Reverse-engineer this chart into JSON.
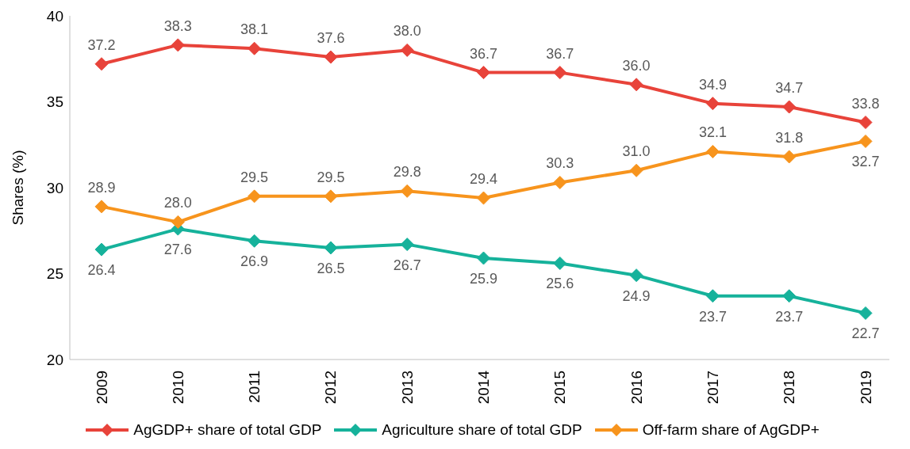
{
  "chart_data": {
    "type": "line",
    "ylabel": "Shares (%)",
    "categories": [
      "2009",
      "2010",
      "2011",
      "2012",
      "2013",
      "2014",
      "2015",
      "2016",
      "2017",
      "2018",
      "2019"
    ],
    "series": [
      {
        "name": "AgGDP+ share of total GDP",
        "color": "#e8433a",
        "values": [
          37.2,
          38.3,
          38.1,
          37.6,
          38.0,
          36.7,
          36.7,
          36.0,
          34.9,
          34.7,
          33.8
        ],
        "value_labels": [
          "37.2",
          "38.3",
          "38.1",
          "37.6",
          "38.0",
          "36.7",
          "36.7",
          "36.0",
          "34.9",
          "34.7",
          "33.8"
        ]
      },
      {
        "name": "Agriculture share of total GDP",
        "color": "#16b29b",
        "values": [
          26.4,
          27.6,
          26.9,
          26.5,
          26.7,
          25.9,
          25.6,
          24.9,
          23.7,
          23.7,
          22.7
        ],
        "value_labels": [
          "26.4",
          "27.6",
          "26.9",
          "26.5",
          "26.7",
          "25.9",
          "25.6",
          "24.9",
          "23.7",
          "23.7",
          "22.7"
        ]
      },
      {
        "name": "Off-farm share of AgGDP+",
        "color": "#f7941d",
        "values": [
          28.9,
          28.0,
          29.5,
          29.5,
          29.8,
          29.4,
          30.3,
          31.0,
          32.1,
          31.8,
          32.7
        ],
        "value_labels": [
          "28.9",
          "28.0",
          "29.5",
          "29.5",
          "29.8",
          "29.4",
          "30.3",
          "31.0",
          "32.1",
          "31.8",
          "32.7"
        ]
      }
    ],
    "ylim": [
      20,
      40
    ],
    "yticks": [
      20,
      25,
      30,
      35,
      40
    ],
    "grid": false,
    "legend": "bottom",
    "marker": "diamond",
    "line_style": "solid"
  }
}
